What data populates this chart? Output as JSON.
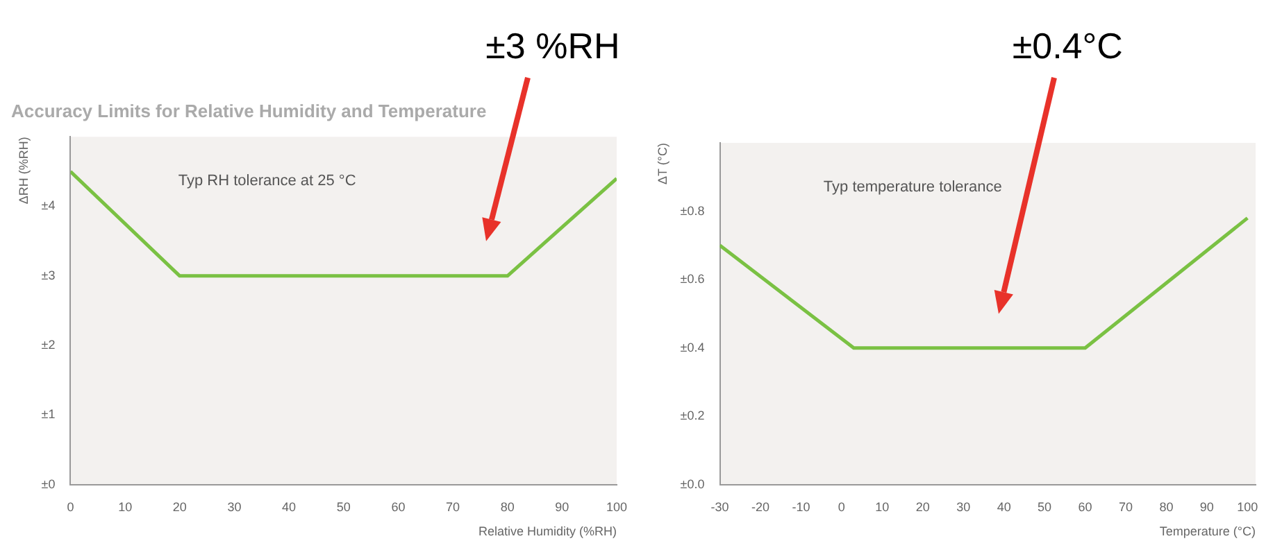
{
  "chart_data": [
    {
      "type": "line",
      "title": "Accuracy Limits for Relative Humidity and Temperature",
      "xlabel": "Relative Humidity (%RH)",
      "ylabel": "ΔRH (%RH)",
      "x": [
        0,
        20,
        80,
        100
      ],
      "values": [
        4.5,
        3,
        3,
        4.4
      ],
      "color": "#7ac143",
      "xlim": [
        0,
        100
      ],
      "xticks": [
        0,
        10,
        20,
        30,
        40,
        50,
        60,
        70,
        80,
        90,
        100
      ],
      "ylim": [
        0,
        5
      ],
      "yticks": [
        {
          "value": 0,
          "label": "±0"
        },
        {
          "value": 1,
          "label": "±1"
        },
        {
          "value": 2,
          "label": "±2"
        },
        {
          "value": 3,
          "label": "±3"
        },
        {
          "value": 4,
          "label": "±4"
        }
      ],
      "grid": false,
      "legend": false,
      "marker": "none",
      "line_style": "solid",
      "annotations": [
        "±3 %RH",
        "Typ RH tolerance at 25 °C"
      ]
    },
    {
      "type": "line",
      "xlabel": "Temperature (°C)",
      "ylabel": "ΔT (°C)",
      "x": [
        -30,
        3,
        60,
        100
      ],
      "values": [
        0.7,
        0.4,
        0.4,
        0.78
      ],
      "color": "#7ac143",
      "xlim": [
        -30,
        102
      ],
      "xticks": [
        -30,
        -20,
        -10,
        0,
        10,
        20,
        30,
        40,
        50,
        60,
        70,
        80,
        90,
        100
      ],
      "ylim": [
        0,
        1
      ],
      "yticks": [
        {
          "value": 0,
          "label": "±0.0"
        },
        {
          "value": 0.2,
          "label": "±0.2"
        },
        {
          "value": 0.4,
          "label": "±0.4"
        },
        {
          "value": 0.6,
          "label": "±0.6"
        },
        {
          "value": 0.8,
          "label": "±0.8"
        }
      ],
      "grid": false,
      "legend": false,
      "marker": "none",
      "line_style": "solid",
      "annotations": [
        "±0.4°C",
        "Typ temperature tolerance"
      ]
    }
  ]
}
